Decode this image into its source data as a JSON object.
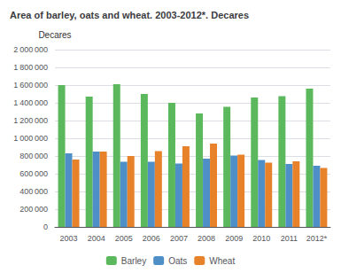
{
  "chart_data": {
    "type": "bar",
    "title": "Area of barley, oats and wheat. 2003-2012*. Decares",
    "ylabel": "Decares",
    "categories": [
      "2003",
      "2004",
      "2005",
      "2006",
      "2007",
      "2008",
      "2009",
      "2010",
      "2011",
      "2012*"
    ],
    "series": [
      {
        "name": "Barley",
        "color": "#5cb85c",
        "values": [
          1600000,
          1470000,
          1610000,
          1500000,
          1400000,
          1280000,
          1355000,
          1460000,
          1475000,
          1560000
        ]
      },
      {
        "name": "Oats",
        "color": "#4e8fc7",
        "values": [
          830000,
          850000,
          735000,
          735000,
          715000,
          770000,
          805000,
          755000,
          710000,
          690000
        ]
      },
      {
        "name": "Wheat",
        "color": "#e8822a",
        "values": [
          760000,
          850000,
          800000,
          855000,
          910000,
          940000,
          815000,
          725000,
          740000,
          665000
        ]
      }
    ],
    "ylim": [
      0,
      2000000
    ],
    "yticks": [
      0,
      {
        "value": 200000,
        "label": "200 000"
      },
      {
        "value": 400000,
        "label": "400 000"
      },
      {
        "value": 600000,
        "label": "600 000"
      },
      {
        "value": 800000,
        "label": "800 000"
      },
      {
        "value": 1000000,
        "label": "1 000 000"
      },
      {
        "value": 1200000,
        "label": "1 200 000"
      },
      {
        "value": 1400000,
        "label": "1 400 000"
      },
      {
        "value": 1600000,
        "label": "1 600 000"
      },
      {
        "value": 1800000,
        "label": "1 800 000"
      },
      {
        "value": 2000000,
        "label": "2 000 000"
      }
    ],
    "grid": true,
    "legend": "bottom"
  }
}
